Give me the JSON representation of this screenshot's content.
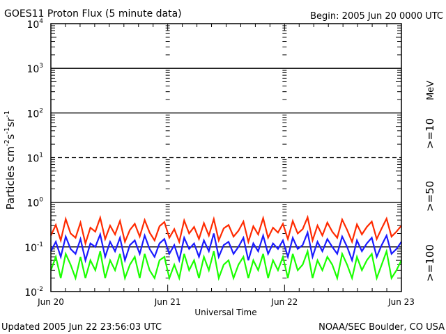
{
  "header": {
    "title": "GOES11 Proton Flux (5 minute data)",
    "begin": "Begin: 2005 Jun 20 0000 UTC"
  },
  "footer": {
    "updated": "Updated 2005 Jun 22 23:56:03 UTC",
    "source": "NOAA/SEC Boulder, CO USA"
  },
  "colors": {
    "ge10": "#ff2a00",
    "ge50": "#1a1aff",
    "ge100": "#1aff00"
  },
  "chart_data": {
    "type": "line",
    "title": "GOES11 Proton Flux (5 minute data)",
    "xlabel": "Universal Time",
    "ylabel": "Particles cm",
    "ylabel_parts": [
      "Particles cm",
      "-2",
      "s",
      "-1",
      "sr",
      "-1"
    ],
    "yscale": "log",
    "ylim": [
      0.01,
      10000
    ],
    "xlim_days": [
      0,
      3
    ],
    "y_ticks": [
      {
        "value": 10000,
        "base": "10",
        "exp": "4"
      },
      {
        "value": 1000,
        "base": "10",
        "exp": "3"
      },
      {
        "value": 100,
        "base": "10",
        "exp": "2"
      },
      {
        "value": 10,
        "base": "10",
        "exp": "1"
      },
      {
        "value": 1,
        "base": "10",
        "exp": "0"
      },
      {
        "value": 0.1,
        "base": "10",
        "exp": "-1"
      },
      {
        "value": 0.01,
        "base": "10",
        "exp": "-2"
      }
    ],
    "x_ticks": [
      {
        "day": 0,
        "label": "Jun 20"
      },
      {
        "day": 1,
        "label": "Jun 21"
      },
      {
        "day": 2,
        "label": "Jun 22"
      },
      {
        "day": 3,
        "label": "Jun 23"
      }
    ],
    "unit_label": "MeV",
    "series": [
      {
        "name": ">=10",
        "color": "#ff2a00",
        "values": [
          0.18,
          0.31,
          0.14,
          0.42,
          0.2,
          0.16,
          0.35,
          0.12,
          0.27,
          0.22,
          0.45,
          0.15,
          0.3,
          0.19,
          0.38,
          0.13,
          0.24,
          0.33,
          0.17,
          0.4,
          0.21,
          0.14,
          0.29,
          0.36,
          0.16,
          0.25,
          0.13,
          0.39,
          0.2,
          0.28,
          0.15,
          0.34,
          0.18,
          0.42,
          0.14,
          0.26,
          0.31,
          0.17,
          0.23,
          0.37,
          0.13,
          0.29,
          0.19,
          0.44,
          0.16,
          0.27,
          0.21,
          0.33,
          0.15,
          0.38,
          0.2,
          0.25,
          0.46,
          0.14,
          0.3,
          0.18,
          0.35,
          0.22,
          0.16,
          0.41,
          0.24,
          0.13,
          0.32,
          0.19,
          0.28,
          0.37,
          0.15,
          0.26,
          0.43,
          0.17,
          0.22,
          0.3
        ]
      },
      {
        "name": ">=50",
        "color": "#1a1aff",
        "values": [
          0.08,
          0.13,
          0.06,
          0.17,
          0.09,
          0.07,
          0.15,
          0.05,
          0.12,
          0.1,
          0.19,
          0.06,
          0.13,
          0.08,
          0.16,
          0.05,
          0.11,
          0.14,
          0.07,
          0.18,
          0.09,
          0.06,
          0.12,
          0.15,
          0.07,
          0.11,
          0.05,
          0.16,
          0.09,
          0.12,
          0.06,
          0.14,
          0.08,
          0.2,
          0.06,
          0.11,
          0.13,
          0.07,
          0.1,
          0.16,
          0.05,
          0.12,
          0.08,
          0.18,
          0.07,
          0.12,
          0.09,
          0.14,
          0.06,
          0.16,
          0.09,
          0.11,
          0.21,
          0.06,
          0.13,
          0.08,
          0.15,
          0.1,
          0.07,
          0.17,
          0.1,
          0.05,
          0.14,
          0.08,
          0.12,
          0.16,
          0.06,
          0.11,
          0.18,
          0.07,
          0.09,
          0.13
        ]
      },
      {
        "name": ">=100",
        "color": "#1aff00",
        "values": [
          0.03,
          0.06,
          0.02,
          0.07,
          0.04,
          0.02,
          0.06,
          0.02,
          0.05,
          0.03,
          0.08,
          0.02,
          0.05,
          0.03,
          0.07,
          0.02,
          0.04,
          0.06,
          0.02,
          0.07,
          0.03,
          0.02,
          0.05,
          0.06,
          0.02,
          0.04,
          0.02,
          0.07,
          0.03,
          0.05,
          0.02,
          0.06,
          0.03,
          0.08,
          0.02,
          0.04,
          0.05,
          0.02,
          0.04,
          0.06,
          0.02,
          0.05,
          0.03,
          0.07,
          0.02,
          0.05,
          0.03,
          0.06,
          0.02,
          0.07,
          0.03,
          0.04,
          0.08,
          0.02,
          0.05,
          0.03,
          0.06,
          0.04,
          0.02,
          0.07,
          0.04,
          0.02,
          0.06,
          0.03,
          0.05,
          0.07,
          0.02,
          0.04,
          0.08,
          0.02,
          0.03,
          0.05
        ]
      }
    ]
  }
}
